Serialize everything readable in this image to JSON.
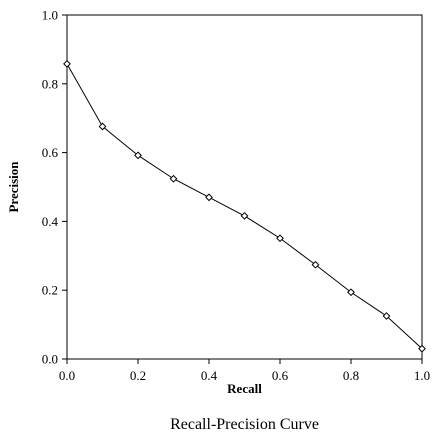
{
  "chart_data": {
    "type": "line",
    "title": "",
    "caption": "Recall-Precision Curve",
    "xlabel": "Recall",
    "ylabel": "Precision",
    "xlim": [
      0.0,
      1.0
    ],
    "ylim": [
      0.0,
      1.0
    ],
    "grid": false,
    "marker": "open-diamond",
    "x_ticks": [
      "0.0",
      "0.2",
      "0.4",
      "0.6",
      "0.8",
      "1.0"
    ],
    "y_ticks": [
      "0.0",
      "0.2",
      "0.4",
      "0.6",
      "0.8",
      "1.0"
    ],
    "x": [
      0.0,
      0.1,
      0.2,
      0.3,
      0.4,
      0.5,
      0.6,
      0.7,
      0.8,
      0.9,
      1.0
    ],
    "y": [
      0.858,
      0.676,
      0.592,
      0.524,
      0.47,
      0.416,
      0.351,
      0.274,
      0.194,
      0.125,
      0.03
    ],
    "colors": {
      "line": "#000000",
      "marker_fill": "#ffffff"
    }
  }
}
